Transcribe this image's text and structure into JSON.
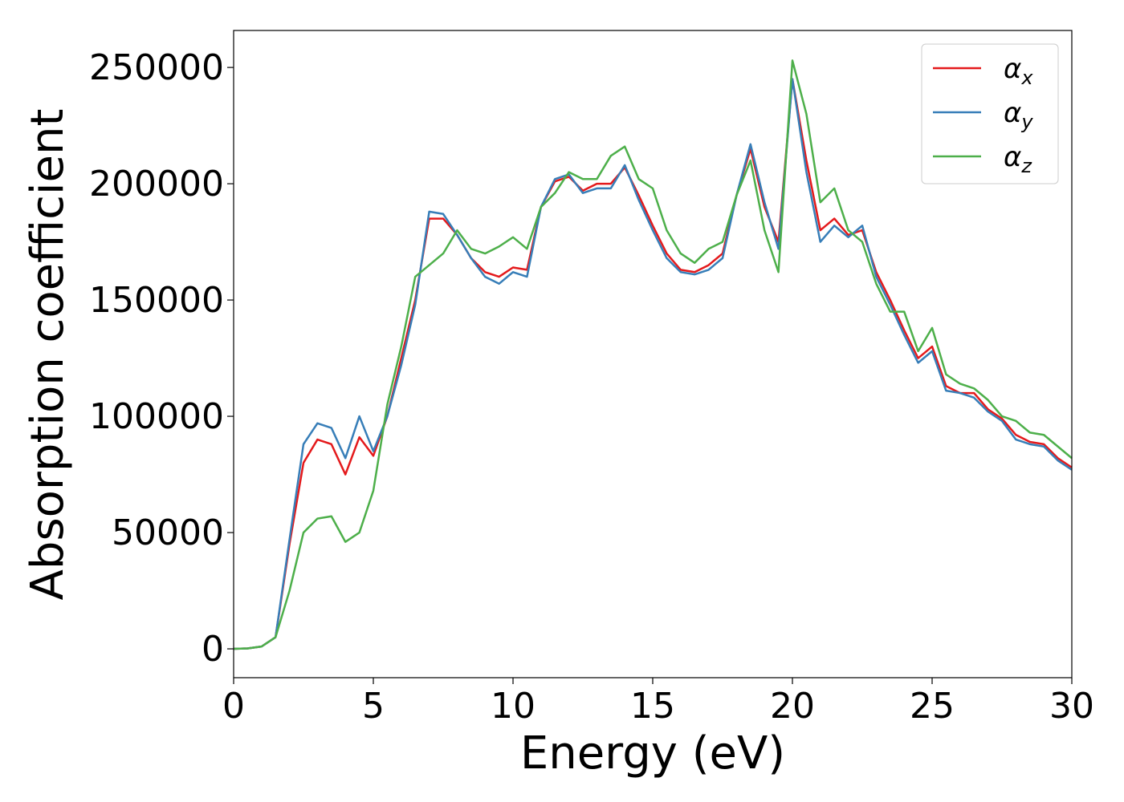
{
  "chart_data": {
    "type": "line",
    "x_label": "Energy (eV)",
    "y_label": "Absorption coefficient",
    "x": [
      0,
      0.5,
      1,
      1.5,
      2,
      2.5,
      3,
      3.5,
      4,
      4.5,
      5,
      5.5,
      6,
      6.5,
      7,
      7.5,
      8,
      8.5,
      9,
      9.5,
      10,
      10.5,
      11,
      11.5,
      12,
      12.5,
      13,
      13.5,
      14,
      14.5,
      15,
      15.5,
      16,
      16.5,
      17,
      17.5,
      18,
      18.5,
      19,
      19.5,
      20,
      20.5,
      21,
      21.5,
      22,
      22.5,
      23,
      23.5,
      24,
      24.5,
      25,
      25.5,
      26,
      26.5,
      27,
      27.5,
      28,
      28.5,
      29,
      29.5,
      30
    ],
    "series": [
      {
        "name": "αx",
        "color": "#e41a1c",
        "values": [
          0,
          200,
          1000,
          5000,
          45000,
          80000,
          90000,
          88000,
          75000,
          91000,
          83000,
          100000,
          125000,
          150000,
          185000,
          185000,
          178000,
          168000,
          162000,
          160000,
          164000,
          163000,
          190000,
          201000,
          203000,
          197000,
          200000,
          200000,
          207000,
          195000,
          182000,
          170000,
          163000,
          162000,
          165000,
          170000,
          195000,
          215000,
          190000,
          175000,
          245000,
          210000,
          180000,
          185000,
          178000,
          180000,
          162000,
          150000,
          137000,
          125000,
          130000,
          113000,
          110000,
          110000,
          103000,
          99000,
          92000,
          89000,
          88000,
          82000,
          78000
        ]
      },
      {
        "name": "αy",
        "color": "#377eb8",
        "values": [
          0,
          200,
          1000,
          5000,
          47000,
          88000,
          97000,
          95000,
          82000,
          100000,
          85000,
          100000,
          122000,
          148000,
          188000,
          187000,
          178000,
          168000,
          160000,
          157000,
          162000,
          160000,
          190000,
          202000,
          204000,
          196000,
          198000,
          198000,
          208000,
          193000,
          180000,
          168000,
          162000,
          161000,
          163000,
          168000,
          195000,
          217000,
          192000,
          172000,
          245000,
          205000,
          175000,
          182000,
          177000,
          182000,
          160000,
          148000,
          135000,
          123000,
          128000,
          111000,
          110000,
          108000,
          102000,
          98000,
          90000,
          88000,
          87000,
          81000,
          77000
        ]
      },
      {
        "name": "αz",
        "color": "#4daf4a",
        "values": [
          0,
          200,
          1000,
          5000,
          25000,
          50000,
          56000,
          57000,
          46000,
          50000,
          68000,
          105000,
          130000,
          160000,
          165000,
          170000,
          180000,
          172000,
          170000,
          173000,
          177000,
          172000,
          190000,
          196000,
          205000,
          202000,
          202000,
          212000,
          216000,
          202000,
          198000,
          180000,
          170000,
          166000,
          172000,
          175000,
          195000,
          210000,
          180000,
          162000,
          253000,
          230000,
          192000,
          198000,
          180000,
          175000,
          157000,
          145000,
          145000,
          128000,
          138000,
          118000,
          114000,
          112000,
          107000,
          100000,
          98000,
          93000,
          92000,
          87000,
          82000
        ]
      }
    ],
    "xlim": [
      0,
      30
    ],
    "ylim": [
      -12400,
      265900
    ],
    "xticks": [
      0,
      5,
      10,
      15,
      20,
      25,
      30
    ],
    "yticks": [
      0,
      50000,
      100000,
      150000,
      200000,
      250000
    ],
    "legend": "upper right"
  }
}
